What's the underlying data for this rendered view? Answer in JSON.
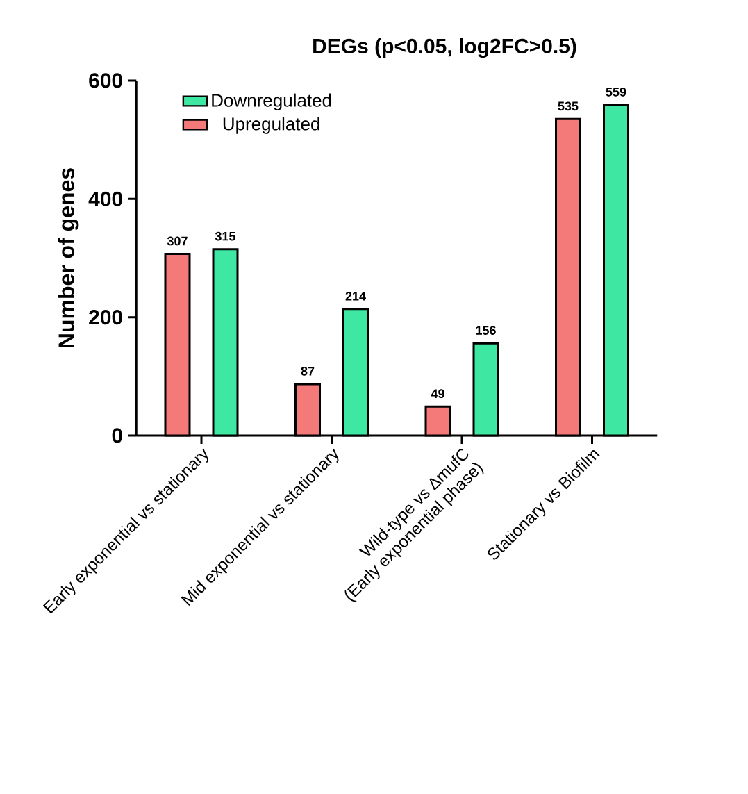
{
  "chart_data": {
    "type": "bar",
    "title": "DEGs (p<0.05, log2FC>0.5)",
    "ylabel": "Number of genes",
    "categories": [
      "Early exponential vs stationary",
      "Mid exponential vs stationary",
      "Wild-type vs ΔmufC\n(Early exponential phase)",
      "Stationary vs Biofilm"
    ],
    "series": [
      {
        "name": "Upregulated",
        "color": "#f47a7a",
        "values": [
          307,
          87,
          49,
          535
        ]
      },
      {
        "name": "Downregulated",
        "color": "#3ee8a2",
        "values": [
          315,
          214,
          156,
          559
        ]
      }
    ],
    "ylim": [
      0,
      600
    ],
    "yticks": [
      0,
      200,
      400,
      600
    ],
    "data_labels": true,
    "legend": "top left"
  }
}
